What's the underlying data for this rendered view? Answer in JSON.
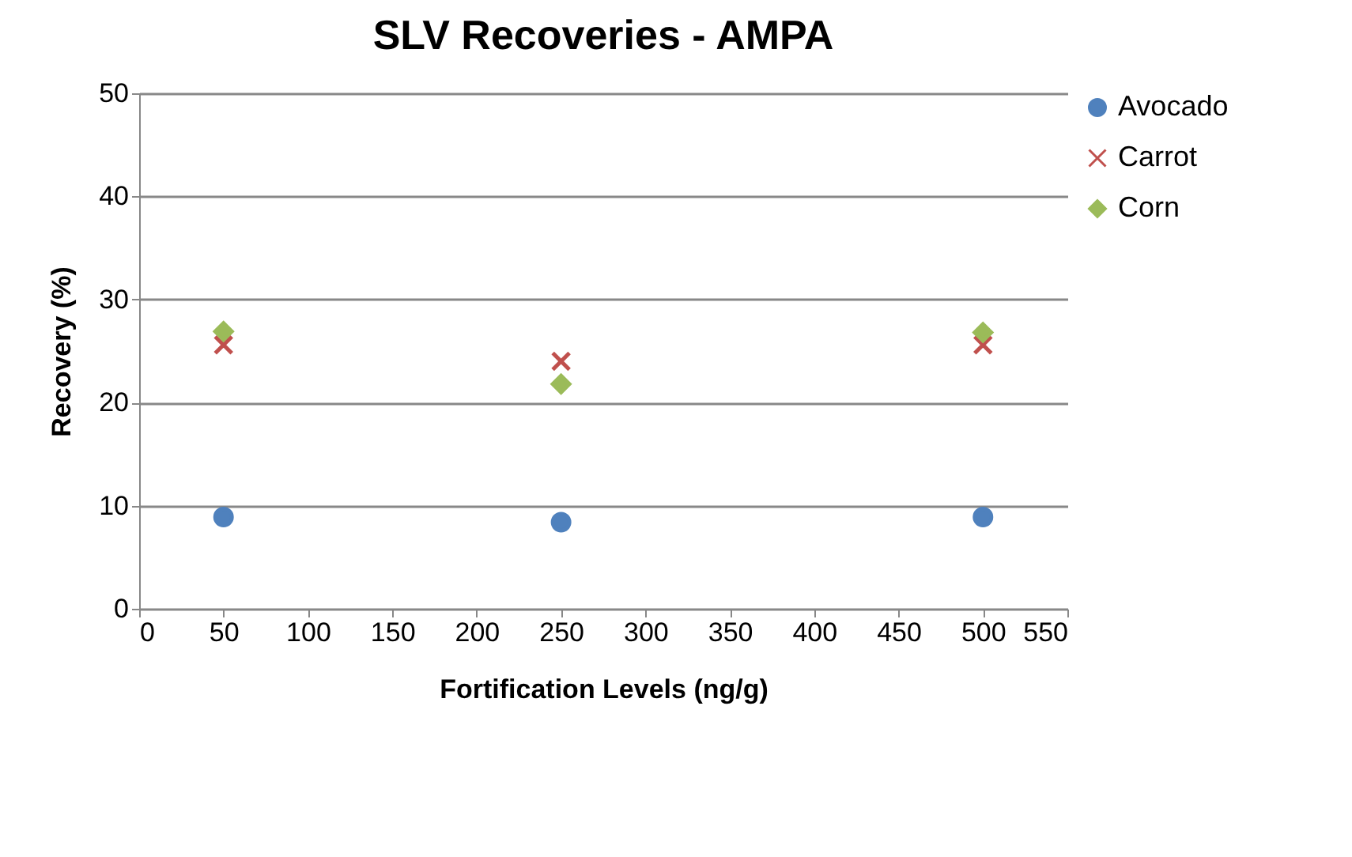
{
  "chart_data": {
    "type": "scatter",
    "title": "SLV Recoveries - AMPA",
    "xlabel": "Fortification Levels (ng/g)",
    "ylabel": "Recovery  (%)",
    "x": [
      50,
      250,
      500
    ],
    "series": [
      {
        "name": "Avocado",
        "color": "#4f81bd",
        "marker": "circle",
        "values": [
          8.9,
          8.4,
          8.9
        ]
      },
      {
        "name": "Carrot",
        "color": "#c0504d",
        "marker": "cross",
        "values": [
          25.6,
          24.0,
          25.6
        ]
      },
      {
        "name": "Corn",
        "color": "#9bbb59",
        "marker": "diamond",
        "values": [
          26.9,
          21.8,
          26.8
        ]
      }
    ],
    "xlim": [
      0,
      550
    ],
    "xticks": [
      0,
      50,
      100,
      150,
      200,
      250,
      300,
      350,
      400,
      450,
      500,
      550
    ],
    "ylim": [
      0,
      50
    ],
    "yticks": [
      0,
      10,
      20,
      30,
      40,
      50
    ],
    "grid": "y",
    "legend": "right"
  }
}
